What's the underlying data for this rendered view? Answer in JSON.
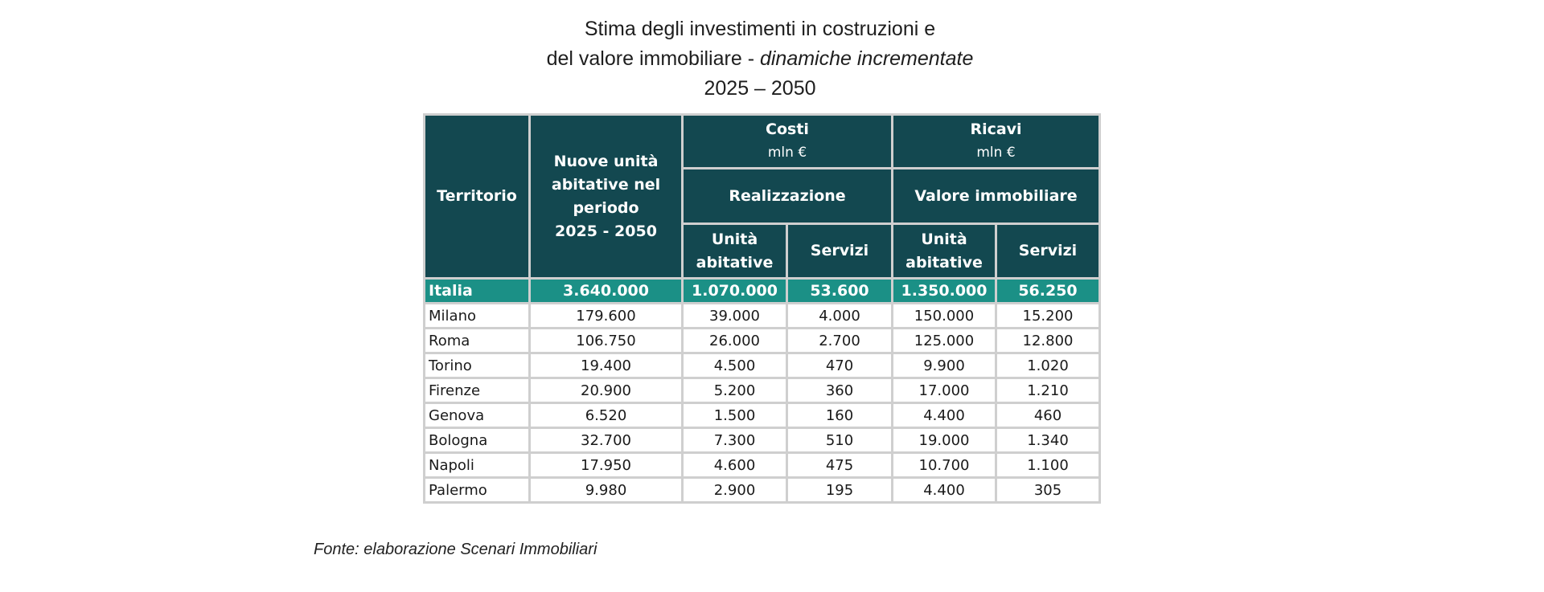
{
  "title": {
    "line1": "Stima degli investimenti in costruzioni e",
    "line2_plain": "del valore immobiliare - ",
    "line2_italic": "dinamiche incrementate",
    "line3": "2025 – 2050"
  },
  "headers": {
    "territorio": "Territorio",
    "nuove_unita": [
      "Nuove unità",
      "abitative nel",
      "periodo",
      "2025 - 2050"
    ],
    "costi": "Costi",
    "costi_unit": "mln €",
    "ricavi": "Ricavi",
    "ricavi_unit": "mln €",
    "realizzazione": "Realizzazione",
    "valore_immobiliare": "Valore immobiliare",
    "unita_abitative_1": [
      "Unità",
      "abitative"
    ],
    "servizi_1": "Servizi",
    "unita_abitative_2": [
      "Unità",
      "abitative"
    ],
    "servizi_2": "Servizi"
  },
  "total": {
    "name": "Italia",
    "values": [
      "3.640.000",
      "1.070.000",
      "53.600",
      "1.350.000",
      "56.250"
    ]
  },
  "rows": [
    {
      "name": "Milano",
      "values": [
        "179.600",
        "39.000",
        "4.000",
        "150.000",
        "15.200"
      ]
    },
    {
      "name": "Roma",
      "values": [
        "106.750",
        "26.000",
        "2.700",
        "125.000",
        "12.800"
      ]
    },
    {
      "name": "Torino",
      "values": [
        "19.400",
        "4.500",
        "470",
        "9.900",
        "1.020"
      ]
    },
    {
      "name": "Firenze",
      "values": [
        "20.900",
        "5.200",
        "360",
        "17.000",
        "1.210"
      ]
    },
    {
      "name": "Genova",
      "values": [
        "6.520",
        "1.500",
        "160",
        "4.400",
        "460"
      ]
    },
    {
      "name": "Bologna",
      "values": [
        "32.700",
        "7.300",
        "510",
        "19.000",
        "1.340"
      ]
    },
    {
      "name": "Napoli",
      "values": [
        "17.950",
        "4.600",
        "475",
        "10.700",
        "1.100"
      ]
    },
    {
      "name": "Palermo",
      "values": [
        "9.980",
        "2.900",
        "195",
        "4.400",
        "305"
      ]
    }
  ],
  "source": "Fonte: elaborazione Scenari Immobiliari",
  "colors": {
    "header_bg": "#134850",
    "total_bg": "#1b9086",
    "grid": "#cfcfcf"
  }
}
